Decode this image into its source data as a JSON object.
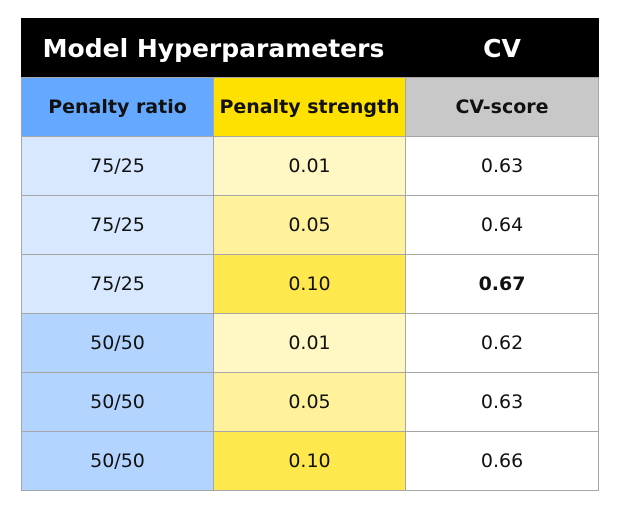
{
  "chart_data": {
    "type": "table",
    "group_headers": [
      {
        "label": "Model Hyperparameters",
        "span": 2
      },
      {
        "label": "CV",
        "span": 1
      }
    ],
    "columns": [
      "Penalty ratio",
      "Penalty strength",
      "CV-score"
    ],
    "rows": [
      {
        "penalty_ratio": "75/25",
        "penalty_strength": "0.01",
        "cv_score": "0.63",
        "highlight": false
      },
      {
        "penalty_ratio": "75/25",
        "penalty_strength": "0.05",
        "cv_score": "0.64",
        "highlight": false
      },
      {
        "penalty_ratio": "75/25",
        "penalty_strength": "0.10",
        "cv_score": "0.67",
        "highlight": true
      },
      {
        "penalty_ratio": "50/50",
        "penalty_strength": "0.01",
        "cv_score": "0.62",
        "highlight": false
      },
      {
        "penalty_ratio": "50/50",
        "penalty_strength": "0.05",
        "cv_score": "0.63",
        "highlight": false
      },
      {
        "penalty_ratio": "50/50",
        "penalty_strength": "0.10",
        "cv_score": "0.66",
        "highlight": false
      }
    ],
    "colors": {
      "group_header_bg": "#000000",
      "group_header_text": "#ffffff",
      "ratio_header_bg": "#64a8ff",
      "strength_header_bg": "#ffe100",
      "score_header_bg": "#c8c8c8",
      "ratio_75_25_bg": "#d8e9ff",
      "ratio_50_50_bg": "#b3d4fe",
      "strength_0_01_bg": "#fff8c4",
      "strength_0_05_bg": "#fff29a",
      "strength_0_10_bg": "#ffe84d",
      "score_bg": "#ffffff"
    }
  }
}
